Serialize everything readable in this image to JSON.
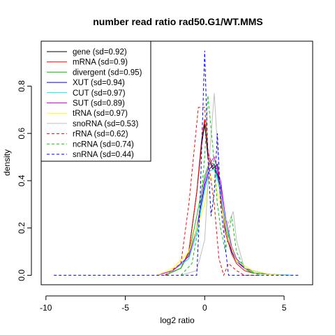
{
  "chart_data": {
    "type": "line",
    "title": "number read ratio rad50.G1/WT.MMS",
    "xlabel": "log2 ratio",
    "ylabel": "density",
    "xlim": [
      -10.3,
      6.8
    ],
    "ylim": [
      -0.04,
      0.99
    ],
    "xticks": [
      -10,
      -5,
      0,
      5
    ],
    "yticks": [
      0.0,
      0.2,
      0.4,
      0.6,
      0.8
    ],
    "grid": false,
    "legend_position": "top-left",
    "series": [
      {
        "name": "gene (sd=0.92)",
        "color": "#000000",
        "dash": "solid",
        "x": [
          -2.5,
          -1.5,
          -1.0,
          -0.5,
          -0.2,
          0.0,
          0.2,
          0.5,
          0.8,
          1.0,
          1.3,
          1.7,
          2.0,
          2.5,
          3.0,
          4.0,
          5.0
        ],
        "y": [
          0.0,
          0.03,
          0.1,
          0.35,
          0.55,
          0.64,
          0.5,
          0.45,
          0.47,
          0.35,
          0.2,
          0.1,
          0.06,
          0.03,
          0.01,
          0.005,
          0.0
        ]
      },
      {
        "name": "mRNA (sd=0.9)",
        "color": "#ff0000",
        "dash": "solid",
        "x": [
          -2.5,
          -1.5,
          -1.0,
          -0.5,
          -0.2,
          0.0,
          0.2,
          0.5,
          0.8,
          1.0,
          1.3,
          1.7,
          2.0,
          2.5,
          3.0,
          4.0,
          5.0
        ],
        "y": [
          0.0,
          0.03,
          0.1,
          0.35,
          0.57,
          0.66,
          0.52,
          0.46,
          0.45,
          0.33,
          0.18,
          0.09,
          0.05,
          0.02,
          0.01,
          0.005,
          0.0
        ]
      },
      {
        "name": "divergent (sd=0.95)",
        "color": "#00cd00",
        "dash": "solid",
        "x": [
          -2.5,
          -1.5,
          -1.0,
          -0.5,
          0.0,
          0.3,
          0.6,
          1.0,
          1.5,
          2.0,
          2.5,
          3.0,
          4.0,
          5.0
        ],
        "y": [
          0.0,
          0.03,
          0.09,
          0.25,
          0.42,
          0.48,
          0.47,
          0.35,
          0.15,
          0.07,
          0.03,
          0.01,
          0.005,
          0.0
        ]
      },
      {
        "name": "XUT (sd=0.94)",
        "color": "#0000ff",
        "dash": "solid",
        "x": [
          -3.0,
          -2.0,
          -1.0,
          -0.5,
          0.0,
          0.3,
          0.6,
          1.0,
          1.3,
          1.7,
          2.0,
          2.5,
          3.0,
          4.0,
          5.0
        ],
        "y": [
          0.0,
          0.02,
          0.08,
          0.2,
          0.38,
          0.45,
          0.47,
          0.38,
          0.2,
          0.1,
          0.06,
          0.03,
          0.02,
          0.005,
          0.0
        ]
      },
      {
        "name": "CUT (sd=0.97)",
        "color": "#00e5ee",
        "dash": "solid",
        "x": [
          -3.0,
          -2.0,
          -1.0,
          -0.5,
          0.0,
          0.3,
          0.6,
          1.0,
          1.3,
          1.7,
          2.0,
          2.5,
          3.0,
          4.0,
          5.5
        ],
        "y": [
          0.0,
          0.02,
          0.07,
          0.18,
          0.36,
          0.44,
          0.45,
          0.36,
          0.22,
          0.12,
          0.07,
          0.04,
          0.02,
          0.005,
          0.0
        ]
      },
      {
        "name": "SUT (sd=0.89)",
        "color": "#ee00ee",
        "dash": "solid",
        "x": [
          -3.0,
          -2.0,
          -1.0,
          -0.5,
          0.0,
          0.3,
          0.6,
          1.0,
          1.3,
          1.7,
          2.0,
          2.5,
          3.0,
          4.0,
          5.0
        ],
        "y": [
          0.0,
          0.02,
          0.08,
          0.2,
          0.4,
          0.47,
          0.5,
          0.4,
          0.25,
          0.12,
          0.07,
          0.03,
          0.02,
          0.005,
          0.0
        ]
      },
      {
        "name": "tRNA (sd=0.97)",
        "color": "#ffff00",
        "dash": "solid",
        "x": [
          -3.0,
          -2.0,
          -1.0,
          -0.5,
          0.0,
          0.3,
          0.6,
          1.0,
          1.5,
          2.0,
          3.0,
          4.0,
          5.0
        ],
        "y": [
          0.0,
          0.03,
          0.1,
          0.2,
          0.3,
          0.42,
          0.4,
          0.3,
          0.15,
          0.06,
          0.02,
          0.005,
          0.0
        ]
      },
      {
        "name": "snoRNA (sd=0.53)",
        "color": "#bebebe",
        "dash": "solid",
        "x": [
          -1.5,
          -0.5,
          0.0,
          0.3,
          0.6,
          0.8,
          1.0,
          1.2,
          1.5,
          1.8,
          2.0,
          2.5,
          3.5
        ],
        "y": [
          0.0,
          0.02,
          0.15,
          0.5,
          0.77,
          0.55,
          0.35,
          0.25,
          0.22,
          0.27,
          0.15,
          0.03,
          0.0
        ]
      },
      {
        "name": "rRNA (sd=0.62)",
        "color": "#ff0000",
        "dash": "dashed",
        "x": [
          -2.5,
          -1.5,
          -1.0,
          -0.4,
          0.0,
          0.3,
          0.6,
          0.9,
          1.2,
          1.5,
          2.0,
          2.5,
          3.5
        ],
        "y": [
          0.0,
          0.05,
          0.3,
          0.71,
          0.71,
          0.45,
          0.3,
          0.07,
          0.0,
          0.05,
          0.02,
          0.0,
          0.0
        ]
      },
      {
        "name": "ncRNA (sd=0.74)",
        "color": "#00cd00",
        "dash": "dashed",
        "x": [
          -1.5,
          -0.8,
          -0.4,
          0.0,
          0.2,
          0.5,
          0.8,
          1.0,
          1.3,
          1.7,
          2.0,
          2.5,
          3.5
        ],
        "y": [
          0.0,
          0.05,
          0.2,
          0.5,
          0.76,
          0.55,
          0.3,
          0.2,
          0.1,
          0.25,
          0.1,
          0.03,
          0.0
        ]
      },
      {
        "name": "snRNA (sd=0.44)",
        "color": "#0000ff",
        "dash": "dashed",
        "x": [
          -9.5,
          -0.5,
          -0.3,
          0.0,
          0.2,
          0.4,
          0.6,
          0.8,
          1.0,
          1.5,
          2.0,
          6.0
        ],
        "y": [
          0.0,
          0.0,
          0.3,
          0.95,
          0.5,
          0.25,
          0.35,
          0.6,
          0.3,
          0.0,
          0.0,
          0.0
        ]
      }
    ]
  }
}
